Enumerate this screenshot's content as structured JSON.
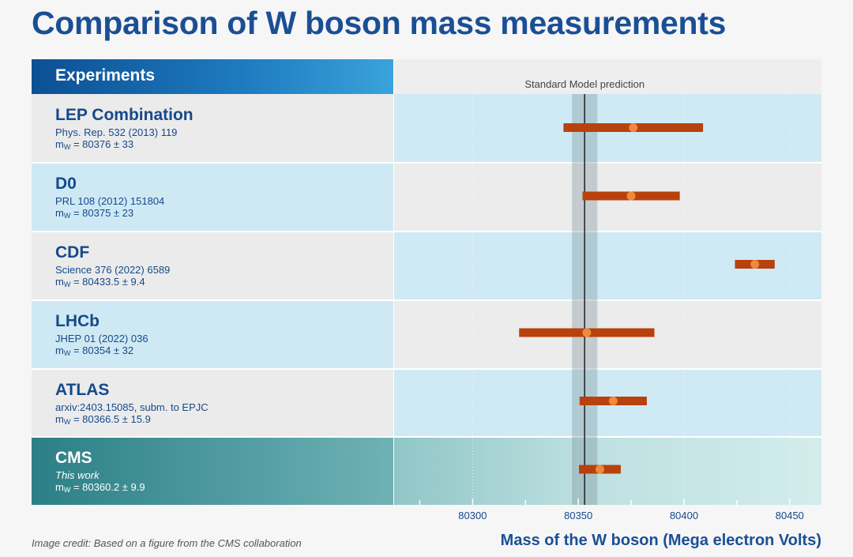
{
  "title": "Comparison of W boson mass measurements",
  "header": "Experiments",
  "credit": "Image credit: Based on a figure from the CMS collaboration",
  "mass_prefix": "m",
  "mass_sub": "W",
  "chart_data": {
    "type": "scatter",
    "title": "Comparison of W boson mass measurements",
    "xlabel": "Mass of the W boson (Mega electron Volts)",
    "xlim": [
      80262.5,
      80465
    ],
    "xticks": [
      80300,
      80350,
      80400,
      80450
    ],
    "xtick_labels": [
      "80300",
      "80350",
      "80400",
      "80450"
    ],
    "reference": {
      "label": "Standard Model prediction",
      "value": 80353,
      "band": [
        80347,
        80359
      ]
    },
    "measurements": [
      {
        "name": "LEP Combination",
        "ref": "Phys. Rep. 532 (2013) 119",
        "mass_text": " = 80376 ± 33",
        "value": 80376,
        "lo": 80343,
        "hi": 80409
      },
      {
        "name": "D0",
        "ref": "PRL 108 (2012) 151804",
        "mass_text": " = 80375 ± 23",
        "value": 80375,
        "lo": 80352,
        "hi": 80398
      },
      {
        "name": "CDF",
        "ref": "Science 376 (2022) 6589",
        "mass_text": " = 80433.5 ± 9.4",
        "value": 80433.5,
        "lo": 80424.1,
        "hi": 80442.9
      },
      {
        "name": "LHCb",
        "ref": "JHEP 01 (2022) 036",
        "mass_text": " = 80354 ± 32",
        "value": 80354,
        "lo": 80322,
        "hi": 80386
      },
      {
        "name": "ATLAS",
        "ref": "arxiv:2403.15085, subm. to EPJC",
        "mass_text": " = 80366.5 ± 15.9",
        "value": 80366.5,
        "lo": 80350.6,
        "hi": 80382.4
      },
      {
        "name": "CMS",
        "ref": "This work",
        "mass_text": " = 80360.2 ± 9.9",
        "value": 80360.2,
        "lo": 80350.3,
        "hi": 80370.1
      }
    ],
    "colors": {
      "error_bar": "#b8410d",
      "point": "#f0893a",
      "title": "#1a4f95"
    }
  }
}
